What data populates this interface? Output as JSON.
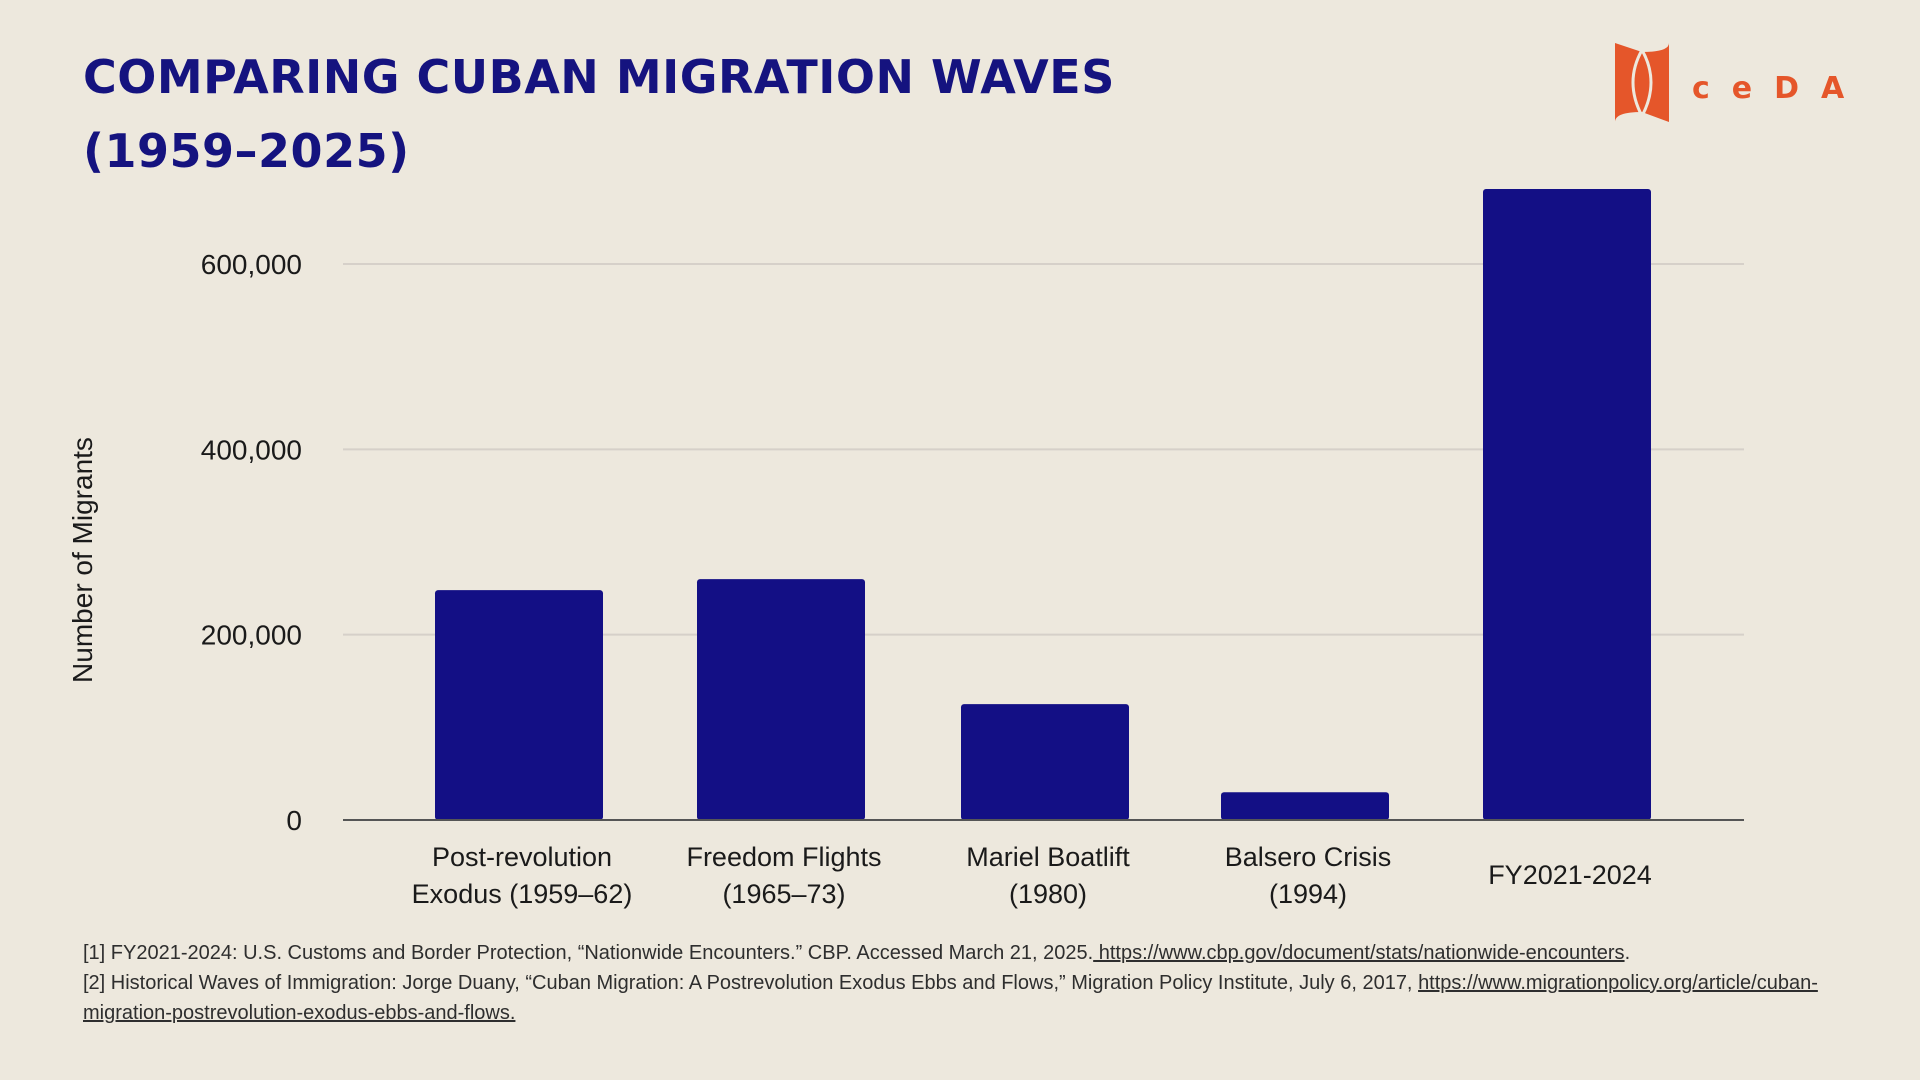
{
  "title": {
    "line1": "COMPARING CUBAN MIGRATION WAVES",
    "line2": "(1959–2025)"
  },
  "logo": {
    "text": "ceDA",
    "color": "#e5562a"
  },
  "colors": {
    "bar": "#130f85",
    "title": "#15137f",
    "grid": "#d6d0c9",
    "axis": "#555555",
    "background": "#ede8dd"
  },
  "chart_data": {
    "type": "bar",
    "title": "COMPARING CUBAN MIGRATION WAVES (1959–2025)",
    "xlabel": "",
    "ylabel": "Number of Migrants",
    "ylim": [
      0,
      690000
    ],
    "yticks": [
      0,
      200000,
      400000,
      600000
    ],
    "ytick_labels": [
      "0",
      "200,000",
      "400,000",
      "600,000"
    ],
    "grid": true,
    "categories": [
      [
        "Post-revolution",
        "Exodus (1959–62)"
      ],
      [
        "Freedom Flights",
        "(1965–73)"
      ],
      [
        "Mariel Boatlift",
        "(1980)"
      ],
      [
        "Balsero Crisis",
        "(1994)"
      ],
      [
        "FY2021-2024"
      ]
    ],
    "values": [
      248000,
      260000,
      125000,
      30000,
      681000
    ]
  },
  "footnotes": [
    {
      "text": "[1] FY2021-2024: U.S. Customs and Border Protection, “Nationwide Encounters.” CBP. Accessed March 21, 2025.",
      "link": " https://www.cbp.gov/document/stats/nationwide-encounters",
      "after": "."
    },
    {
      "text": "[2] Historical Waves of Immigration: Jorge Duany, “Cuban Migration: A Postrevolution Exodus Ebbs and Flows,” Migration Policy Institute, July 6, 2017, ",
      "link": "https://www.migrationpolicy.org/article/cuban-migration-postrevolution-exodus-ebbs-and-flows.",
      "after": ""
    }
  ]
}
